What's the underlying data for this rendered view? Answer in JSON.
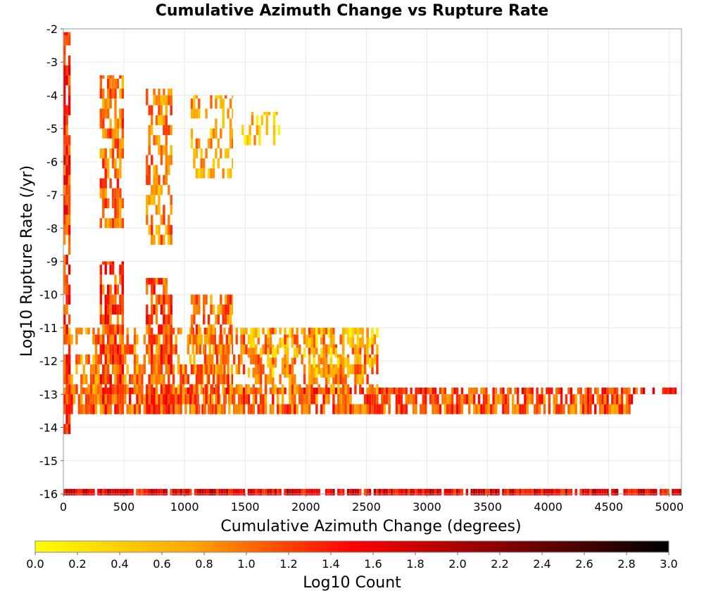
{
  "chart_data": {
    "type": "heatmap",
    "title": "Cumulative Azimuth Change vs Rupture Rate",
    "xlabel": "Cumulative Azimuth Change (degrees)",
    "ylabel": "Log10 Rupture Rate (/yr)",
    "xlim": [
      0,
      5100
    ],
    "ylim": [
      -16,
      -2
    ],
    "x_ticks": [
      "0",
      "500",
      "1000",
      "1500",
      "2000",
      "2500",
      "3000",
      "3500",
      "4000",
      "4500",
      "5000"
    ],
    "y_ticks": [
      "-2",
      "-3",
      "-4",
      "-5",
      "-6",
      "-7",
      "-8",
      "-9",
      "-10",
      "-11",
      "-12",
      "-13",
      "-14",
      "-15",
      "-16"
    ],
    "grid": true,
    "colorbar": {
      "label": "Log10 Count",
      "min": 0.0,
      "max": 3.0,
      "ticks": [
        "0.0",
        "0.2",
        "0.4",
        "0.6",
        "0.8",
        "1.0",
        "1.2",
        "1.4",
        "1.6",
        "1.8",
        "2.0",
        "2.2",
        "2.4",
        "2.6",
        "2.8",
        "3.0"
      ],
      "colors": [
        "#ffff00",
        "#ffa500",
        "#ff0000",
        "#800000",
        "#000000"
      ]
    },
    "bands": [
      {
        "x": [
          0,
          5100
        ],
        "y": [
          -16.05,
          -15.85
        ],
        "level": 1.6,
        "density": 0.9
      },
      {
        "x": [
          0,
          5100
        ],
        "y": [
          -13.0,
          -12.8
        ],
        "level": 1.3,
        "density": 0.7
      },
      {
        "x": [
          0,
          4700
        ],
        "y": [
          -13.6,
          -13.0
        ],
        "level": 1.1,
        "density": 0.75
      },
      {
        "x": [
          0,
          2600
        ],
        "y": [
          -13.0,
          -11.0
        ],
        "level": 0.9,
        "density": 0.55
      },
      {
        "x": [
          0,
          60
        ],
        "y": [
          -14.2,
          -2.1
        ],
        "level": 1.3,
        "density": 0.8
      },
      {
        "x": [
          300,
          500
        ],
        "y": [
          -13.6,
          -9.0
        ],
        "level": 1.2,
        "density": 0.7
      },
      {
        "x": [
          300,
          500
        ],
        "y": [
          -8.0,
          -3.4
        ],
        "level": 1.0,
        "density": 0.6
      },
      {
        "x": [
          680,
          900
        ],
        "y": [
          -13.6,
          -9.5
        ],
        "level": 1.2,
        "density": 0.7
      },
      {
        "x": [
          680,
          900
        ],
        "y": [
          -8.5,
          -3.8
        ],
        "level": 0.9,
        "density": 0.5
      },
      {
        "x": [
          1050,
          1400
        ],
        "y": [
          -13.6,
          -10.0
        ],
        "level": 1.0,
        "density": 0.55
      },
      {
        "x": [
          1050,
          1400
        ],
        "y": [
          -6.5,
          -4.0
        ],
        "level": 0.7,
        "density": 0.4
      },
      {
        "x": [
          1450,
          1800
        ],
        "y": [
          -5.5,
          -4.5
        ],
        "level": 0.5,
        "density": 0.3
      },
      {
        "x": [
          1500,
          2600
        ],
        "y": [
          -12.5,
          -11.0
        ],
        "level": 0.5,
        "density": 0.3
      }
    ]
  }
}
